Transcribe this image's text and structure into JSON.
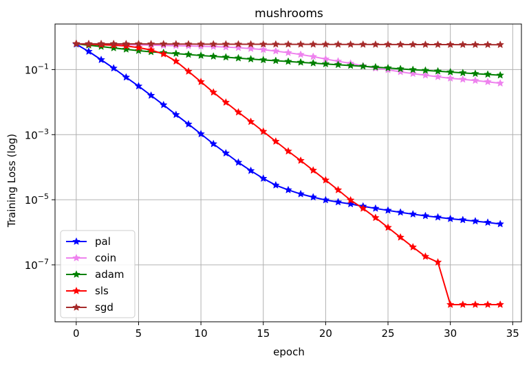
{
  "chart_data": {
    "type": "line",
    "title": "mushrooms",
    "xlabel": "epoch",
    "ylabel": "Training Loss (log)",
    "yscale": "log",
    "xlim": [
      -1.7,
      35.7
    ],
    "ylim_log10": [
      -8.75,
      0.4
    ],
    "grid": true,
    "legend_position": "lower-left",
    "x_ticks": [
      0,
      5,
      10,
      15,
      20,
      25,
      30,
      35
    ],
    "x_tick_labels": [
      "0",
      "5",
      "10",
      "15",
      "20",
      "25",
      "30",
      "35"
    ],
    "y_ticks_log10": [
      -7,
      -5,
      -3,
      -1
    ],
    "y_tick_labels": [
      "10",
      "10",
      "10",
      "10"
    ],
    "y_tick_exponents": [
      "−7",
      "−5",
      "−3",
      "−1"
    ],
    "x": [
      0,
      1,
      2,
      3,
      4,
      5,
      6,
      7,
      8,
      9,
      10,
      11,
      12,
      13,
      14,
      15,
      16,
      17,
      18,
      19,
      20,
      21,
      22,
      23,
      24,
      25,
      26,
      27,
      28,
      29,
      30,
      31,
      32,
      33,
      34
    ],
    "series": [
      {
        "name": "pal",
        "color": "#0000ff",
        "values": [
          0.6,
          0.36,
          0.2,
          0.11,
          0.058,
          0.031,
          0.016,
          0.0082,
          0.0041,
          0.0021,
          0.00105,
          0.00052,
          0.00027,
          0.00014,
          7.8e-05,
          4.5e-05,
          2.8e-05,
          2e-05,
          1.5e-05,
          1.2e-05,
          9.8e-06,
          8.5e-06,
          7.4e-06,
          6.3e-06,
          5.4e-06,
          4.7e-06,
          4.1e-06,
          3.6e-06,
          3.2e-06,
          2.9e-06,
          2.6e-06,
          2.4e-06,
          2.2e-06,
          2e-06,
          1.8e-06
        ]
      },
      {
        "name": "coin",
        "color": "#ee82ee",
        "values": [
          0.62,
          0.61,
          0.6,
          0.59,
          0.58,
          0.57,
          0.56,
          0.55,
          0.54,
          0.53,
          0.52,
          0.51,
          0.49,
          0.47,
          0.44,
          0.41,
          0.37,
          0.33,
          0.29,
          0.25,
          0.21,
          0.18,
          0.155,
          0.13,
          0.11,
          0.098,
          0.085,
          0.075,
          0.067,
          0.06,
          0.054,
          0.05,
          0.046,
          0.042,
          0.038
        ]
      },
      {
        "name": "adam",
        "color": "#008000",
        "values": [
          0.62,
          0.56,
          0.51,
          0.46,
          0.42,
          0.38,
          0.35,
          0.33,
          0.31,
          0.29,
          0.27,
          0.255,
          0.24,
          0.225,
          0.21,
          0.198,
          0.187,
          0.177,
          0.167,
          0.158,
          0.149,
          0.141,
          0.133,
          0.126,
          0.119,
          0.112,
          0.105,
          0.099,
          0.094,
          0.089,
          0.084,
          0.079,
          0.075,
          0.071,
          0.067
        ]
      },
      {
        "name": "sls",
        "color": "#ff0000",
        "values": [
          0.62,
          0.6,
          0.58,
          0.56,
          0.53,
          0.47,
          0.4,
          0.3,
          0.18,
          0.088,
          0.042,
          0.02,
          0.0098,
          0.0049,
          0.0025,
          0.00125,
          0.00062,
          0.00031,
          0.00016,
          8e-05,
          4e-05,
          2e-05,
          9.7e-06,
          5.4e-06,
          2.8e-06,
          1.4e-06,
          7e-07,
          3.5e-07,
          1.8e-07,
          1.2e-07,
          6e-09,
          6e-09,
          6e-09,
          6e-09,
          6e-09
        ]
      },
      {
        "name": "sgd",
        "color": "#a52a2a",
        "values": [
          0.62,
          0.62,
          0.62,
          0.62,
          0.615,
          0.615,
          0.612,
          0.61,
          0.608,
          0.606,
          0.604,
          0.603,
          0.602,
          0.601,
          0.6,
          0.599,
          0.598,
          0.597,
          0.596,
          0.595,
          0.594,
          0.593,
          0.592,
          0.591,
          0.59,
          0.589,
          0.588,
          0.587,
          0.586,
          0.585,
          0.584,
          0.583,
          0.582,
          0.581,
          0.58
        ]
      }
    ]
  }
}
